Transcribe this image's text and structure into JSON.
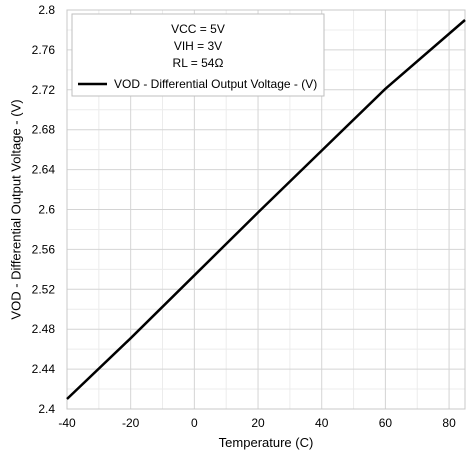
{
  "chart_data": {
    "type": "line",
    "xlabel": "Temperature (C)",
    "ylabel": "VOD - Differential Output Voltage - (V)",
    "xlim": [
      -40,
      85
    ],
    "ylim": [
      2.4,
      2.8
    ],
    "x_ticks": [
      -40,
      -20,
      0,
      20,
      40,
      60,
      80
    ],
    "y_ticks": [
      2.4,
      2.44,
      2.48,
      2.52,
      2.56,
      2.6,
      2.64,
      2.68,
      2.72,
      2.76,
      2.8
    ],
    "x_tick_labels": [
      "-40",
      "-20",
      "0",
      "20",
      "40",
      "60",
      "80"
    ],
    "y_tick_labels": [
      "2.4",
      "2.44",
      "2.48",
      "2.52",
      "2.56",
      "2.6",
      "2.64",
      "2.68",
      "2.72",
      "2.76",
      "2.8"
    ],
    "grid": true,
    "legend_position": "top-left",
    "conditions": [
      "VCC = 5V",
      "VIH = 3V",
      "RL = 54Ω"
    ],
    "series": [
      {
        "name": "VOD - Differential Output Voltage - (V)",
        "color": "#000000",
        "x": [
          -40,
          -20,
          0,
          20,
          40,
          60,
          85
        ],
        "y": [
          2.41,
          2.471,
          2.534,
          2.597,
          2.659,
          2.721,
          2.79
        ]
      }
    ]
  }
}
